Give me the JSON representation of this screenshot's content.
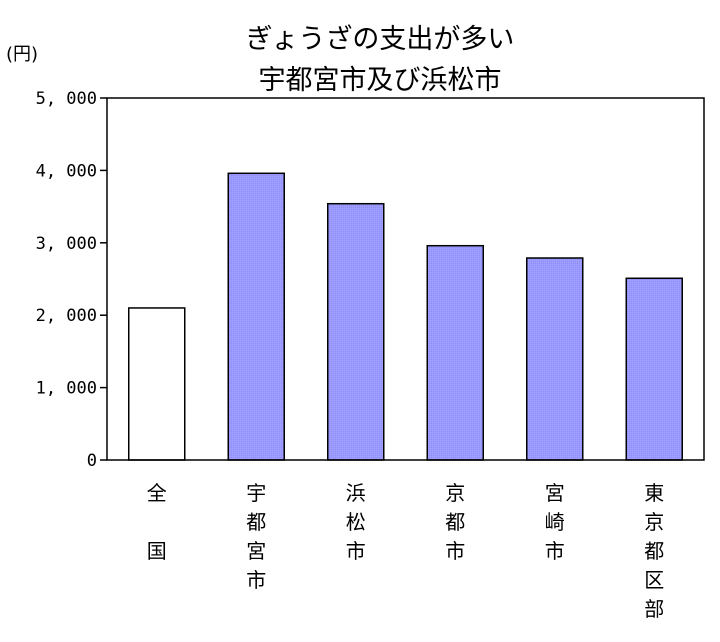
{
  "chart_data": {
    "type": "bar",
    "title_lines": [
      "ぎょうざの支出が多い",
      "宇都宮市及び浜松市"
    ],
    "unit_label": "(円)",
    "y_ticks": [
      "0",
      "1, 000",
      "2, 000",
      "3, 000",
      "4, 000",
      "5, 000"
    ],
    "ylim": [
      0,
      5000
    ],
    "grid": false,
    "categories": [
      {
        "label_lines": [
          "全",
          "",
          "国"
        ],
        "value": 2100,
        "highlight": false
      },
      {
        "label_lines": [
          "宇",
          "都",
          "宮",
          "市"
        ],
        "value": 3960,
        "highlight": true
      },
      {
        "label_lines": [
          "浜",
          "松",
          "市"
        ],
        "value": 3540,
        "highlight": true
      },
      {
        "label_lines": [
          "京",
          "都",
          "市"
        ],
        "value": 2960,
        "highlight": true
      },
      {
        "label_lines": [
          "宮",
          "崎",
          "市"
        ],
        "value": 2790,
        "highlight": true
      },
      {
        "label_lines": [
          "東",
          "京",
          "都",
          "区",
          "部"
        ],
        "value": 2510,
        "highlight": true
      }
    ],
    "colors": {
      "highlight_fill": "#9999ff",
      "base_fill": "#ffffff",
      "stroke": "#000000"
    }
  }
}
